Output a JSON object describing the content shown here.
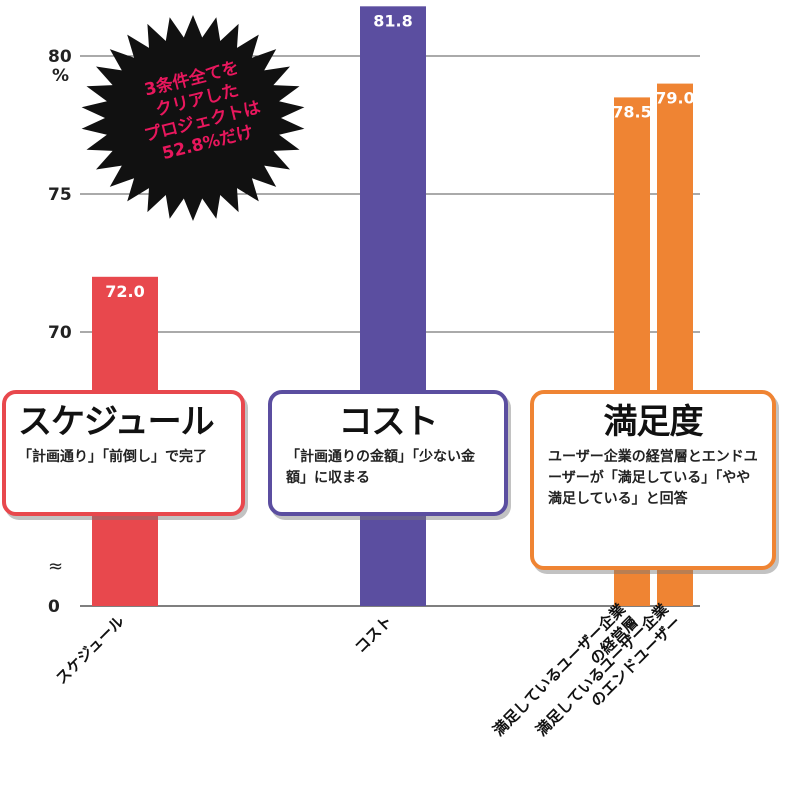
{
  "chart_data": {
    "type": "bar",
    "unit": "%",
    "yticks": [
      {
        "value": 80,
        "label": "80"
      },
      {
        "value": 75,
        "label": "75"
      },
      {
        "value": 70,
        "label": "70"
      },
      {
        "value": 0,
        "label": "0"
      }
    ],
    "axis_break_symbol": "≈",
    "ylim": [
      0,
      82
    ],
    "grid": true,
    "bars": [
      {
        "category": "スケジュール",
        "value": 72.0,
        "label": "72.0",
        "color": "#e8484d"
      },
      {
        "category": "コスト",
        "value": 81.8,
        "label": "81.8",
        "color": "#5b4ea0"
      },
      {
        "category": "満足しているユーザー企業の経営層",
        "category_lines": [
          "満足しているユーザー企業",
          "の経営層"
        ],
        "value": 78.5,
        "label": "78.5",
        "color": "#ef8433"
      },
      {
        "category": "満足しているユーザー企業のエンドユーザー",
        "category_lines": [
          "満足しているユーザー企業",
          "のエンドユーザー"
        ],
        "value": 79.0,
        "label": "79.0",
        "color": "#ef8433"
      }
    ]
  },
  "burst": {
    "lines": [
      "3条件全てを",
      "クリアした",
      "プロジェクトは",
      "52.8%だけ"
    ],
    "fill": "#111111",
    "text_color": "#e8175d"
  },
  "callouts": {
    "schedule": {
      "title": "スケジュール",
      "desc": "「計画通り」「前倒し」で完了",
      "color": "#e8484d"
    },
    "cost": {
      "title": "コスト",
      "desc": "「計画通りの金額」「少ない金額」に収まる",
      "color": "#5b4ea0"
    },
    "satisfaction": {
      "title": "満足度",
      "desc": "ユーザー企業の経営層とエンドユーザーが「満足している」「やや満足している」と回答",
      "color": "#ef8433"
    }
  }
}
